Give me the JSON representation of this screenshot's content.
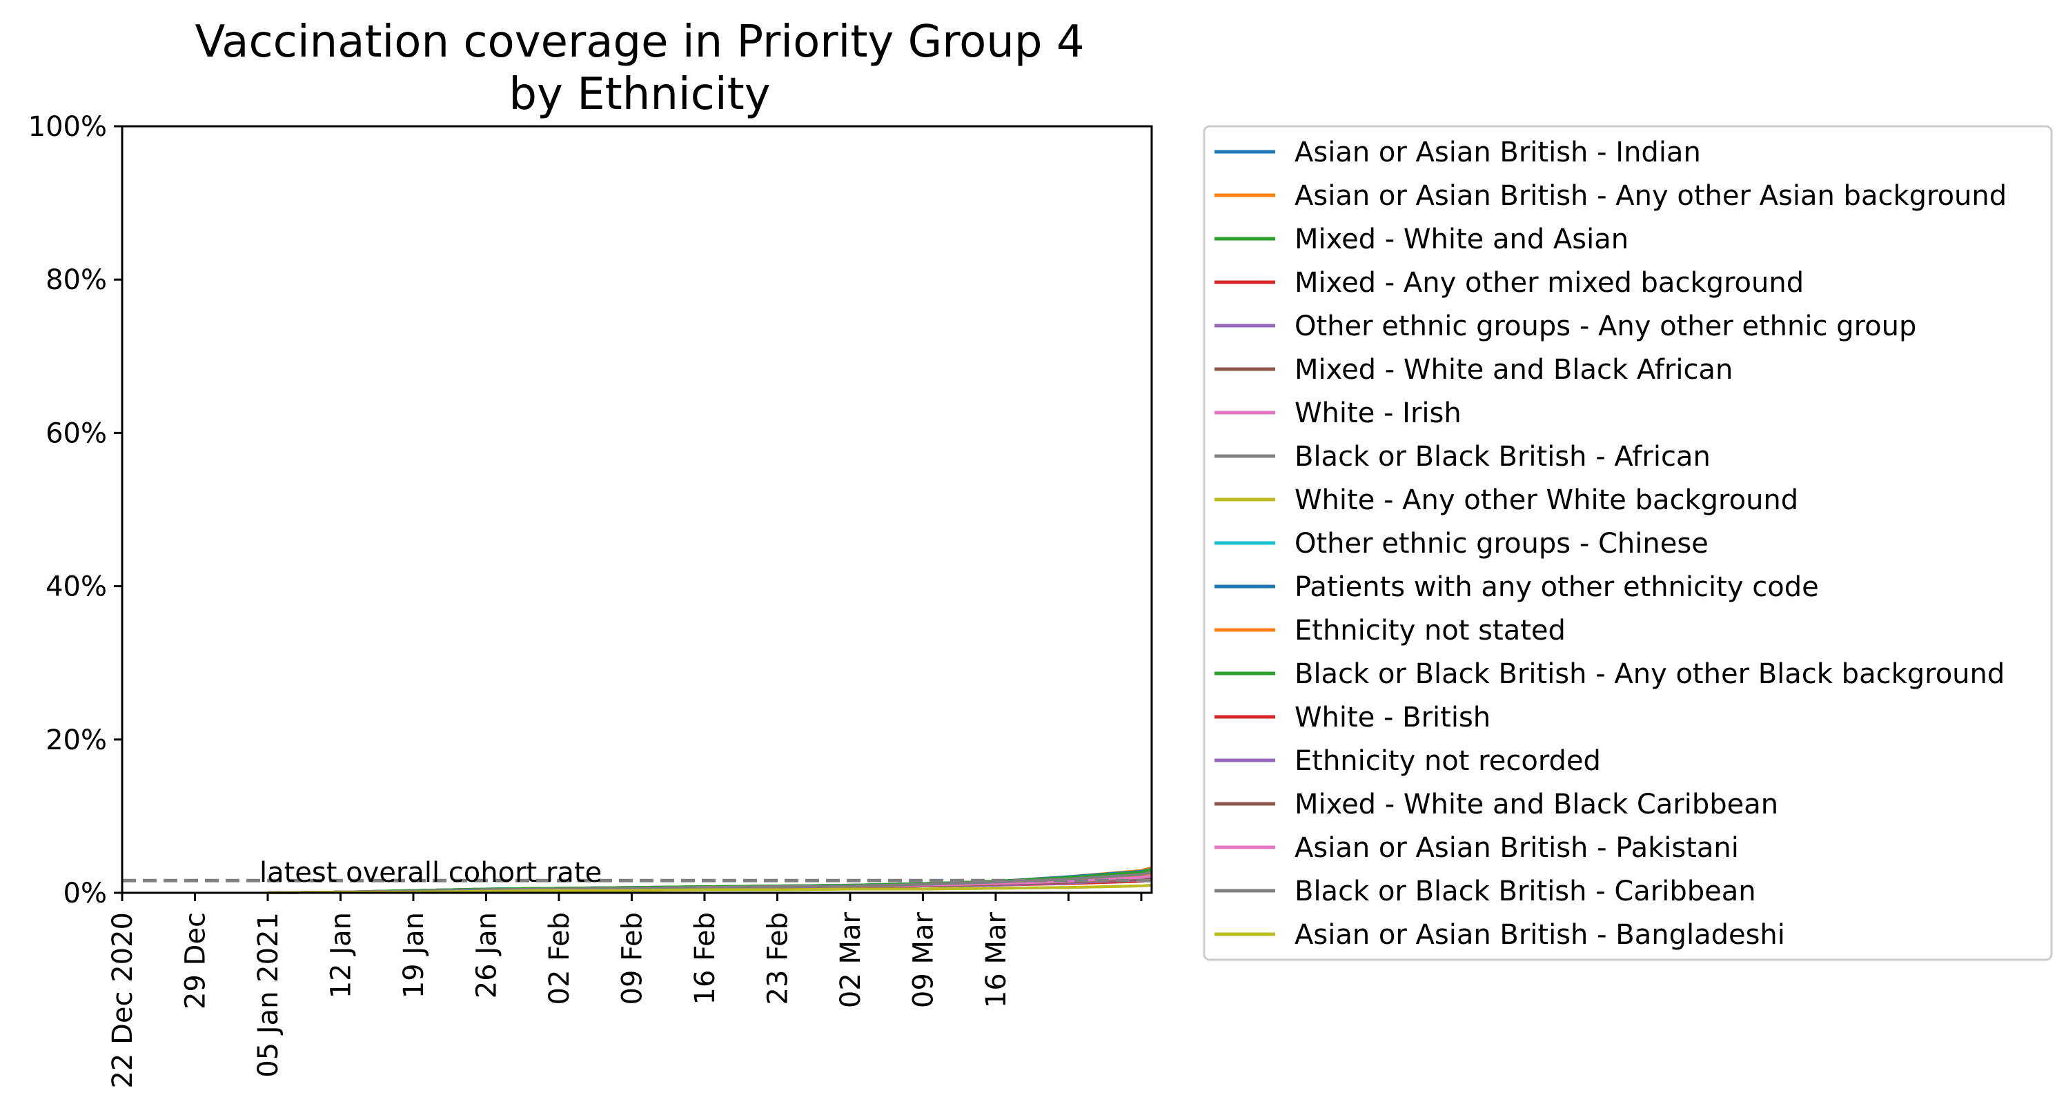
{
  "chart_data": {
    "type": "line",
    "title": "Vaccination coverage in Priority Group 4",
    "title_line2": "by Ethnicity",
    "xlabel": "",
    "ylabel": "",
    "ylim": [
      0,
      100
    ],
    "y_ticks": [
      0,
      20,
      40,
      60,
      80,
      100
    ],
    "y_tick_labels": [
      "0%",
      "20%",
      "40%",
      "60%",
      "80%",
      "100%"
    ],
    "x_tick_labels": [
      "22 Dec 2020",
      "29 Dec",
      "05 Jan 2021",
      "12 Jan",
      "19 Jan",
      "26 Jan",
      "02 Feb",
      "09 Feb",
      "16 Feb",
      "23 Feb",
      "02 Mar",
      "09 Mar",
      "16 Mar",
      "",
      ""
    ],
    "x_range_days": [
      0,
      99
    ],
    "legend_position": "outside-right",
    "grid": false,
    "reference_line": {
      "label": "latest overall cohort rate",
      "value": 1.6,
      "color": "#808080"
    },
    "x_days": [
      14,
      21,
      28,
      35,
      42,
      49,
      56,
      63,
      70,
      77,
      84,
      91,
      98,
      99
    ],
    "series": [
      {
        "name": "Asian or Asian British - Indian",
        "color": "#1f77b4",
        "values": [
          0,
          0.1,
          0.3,
          0.5,
          0.6,
          0.7,
          0.8,
          0.9,
          1.0,
          1.2,
          1.5,
          2.0,
          2.7,
          3.0
        ]
      },
      {
        "name": "Asian or Asian British - Any other Asian background",
        "color": "#ff7f0e",
        "values": [
          0,
          0.1,
          0.3,
          0.5,
          0.6,
          0.7,
          0.8,
          0.9,
          1.0,
          1.2,
          1.5,
          2.1,
          2.9,
          3.3
        ]
      },
      {
        "name": "Mixed - White and Asian",
        "color": "#2ca02c",
        "values": [
          0,
          0.1,
          0.2,
          0.4,
          0.5,
          0.6,
          0.7,
          0.8,
          0.9,
          1.0,
          1.3,
          1.7,
          2.3,
          2.6
        ]
      },
      {
        "name": "Mixed - Any other mixed background",
        "color": "#d62728",
        "values": [
          0,
          0.1,
          0.2,
          0.4,
          0.5,
          0.6,
          0.6,
          0.7,
          0.8,
          0.9,
          1.1,
          1.5,
          2.0,
          2.3
        ]
      },
      {
        "name": "Other ethnic groups - Any other ethnic group",
        "color": "#9467bd",
        "values": [
          0,
          0.1,
          0.2,
          0.4,
          0.5,
          0.6,
          0.7,
          0.8,
          0.9,
          1.0,
          1.2,
          1.6,
          2.1,
          2.4
        ]
      },
      {
        "name": "Mixed - White and Black African",
        "color": "#8c564b",
        "values": [
          0,
          0.1,
          0.2,
          0.3,
          0.4,
          0.5,
          0.6,
          0.7,
          0.8,
          0.9,
          1.1,
          1.4,
          1.9,
          2.2
        ]
      },
      {
        "name": "White - Irish",
        "color": "#e377c2",
        "values": [
          0,
          0.1,
          0.2,
          0.4,
          0.5,
          0.6,
          0.7,
          0.8,
          0.9,
          1.0,
          1.2,
          1.5,
          2.0,
          2.2
        ]
      },
      {
        "name": "Black or Black British - African",
        "color": "#7f7f7f",
        "values": [
          0,
          0.1,
          0.2,
          0.4,
          0.5,
          0.6,
          0.7,
          0.8,
          0.9,
          1.1,
          1.4,
          1.9,
          2.6,
          2.9
        ]
      },
      {
        "name": "White - Any other White background",
        "color": "#bcbd22",
        "values": [
          0,
          0.1,
          0.1,
          0.2,
          0.3,
          0.3,
          0.4,
          0.4,
          0.5,
          0.5,
          0.6,
          0.7,
          0.9,
          1.0
        ]
      },
      {
        "name": "Other ethnic groups - Chinese",
        "color": "#17becf",
        "values": [
          0,
          0.1,
          0.2,
          0.4,
          0.5,
          0.6,
          0.7,
          0.8,
          0.9,
          1.0,
          1.2,
          1.7,
          2.3,
          2.6
        ]
      },
      {
        "name": "Patients with any other ethnicity code",
        "color": "#1f77b4",
        "values": [
          0,
          0.1,
          0.3,
          0.5,
          0.6,
          0.7,
          0.8,
          0.9,
          1.0,
          1.2,
          1.5,
          2.1,
          2.8,
          3.1
        ]
      },
      {
        "name": "Ethnicity not stated",
        "color": "#ff7f0e",
        "values": [
          0,
          0.1,
          0.2,
          0.4,
          0.5,
          0.6,
          0.7,
          0.8,
          0.9,
          1.0,
          1.3,
          1.7,
          2.3,
          2.6
        ]
      },
      {
        "name": "Black or Black British - Any other Black background",
        "color": "#2ca02c",
        "values": [
          0,
          0.1,
          0.3,
          0.5,
          0.6,
          0.7,
          0.8,
          0.9,
          1.0,
          1.2,
          1.5,
          2.0,
          2.7,
          3.1
        ]
      },
      {
        "name": "White - British",
        "color": "#d62728",
        "values": [
          0,
          0.1,
          0.2,
          0.3,
          0.4,
          0.5,
          0.6,
          0.7,
          0.8,
          0.9,
          1.0,
          1.2,
          1.5,
          1.7
        ]
      },
      {
        "name": "Ethnicity not recorded",
        "color": "#9467bd",
        "values": [
          0,
          0.1,
          0.2,
          0.3,
          0.4,
          0.5,
          0.6,
          0.7,
          0.8,
          0.9,
          1.0,
          1.3,
          1.7,
          1.9
        ]
      },
      {
        "name": "Mixed - White and Black Caribbean",
        "color": "#8c564b",
        "values": [
          0,
          0.1,
          0.2,
          0.3,
          0.4,
          0.5,
          0.6,
          0.7,
          0.8,
          0.9,
          1.1,
          1.4,
          1.8,
          2.0
        ]
      },
      {
        "name": "Asian or Asian British - Pakistani",
        "color": "#e377c2",
        "values": [
          0,
          0.1,
          0.2,
          0.4,
          0.5,
          0.6,
          0.7,
          0.8,
          0.9,
          1.0,
          1.2,
          1.5,
          2.0,
          2.2
        ]
      },
      {
        "name": "Black or Black British - Caribbean",
        "color": "#7f7f7f",
        "values": [
          0,
          0.1,
          0.2,
          0.4,
          0.5,
          0.6,
          0.7,
          0.8,
          0.9,
          1.1,
          1.4,
          1.8,
          2.4,
          2.7
        ]
      },
      {
        "name": "Asian or Asian British - Bangladeshi",
        "color": "#bcbd22",
        "values": [
          0,
          0.1,
          0.1,
          0.2,
          0.3,
          0.3,
          0.4,
          0.4,
          0.5,
          0.5,
          0.6,
          0.7,
          0.9,
          1.0
        ]
      }
    ]
  }
}
